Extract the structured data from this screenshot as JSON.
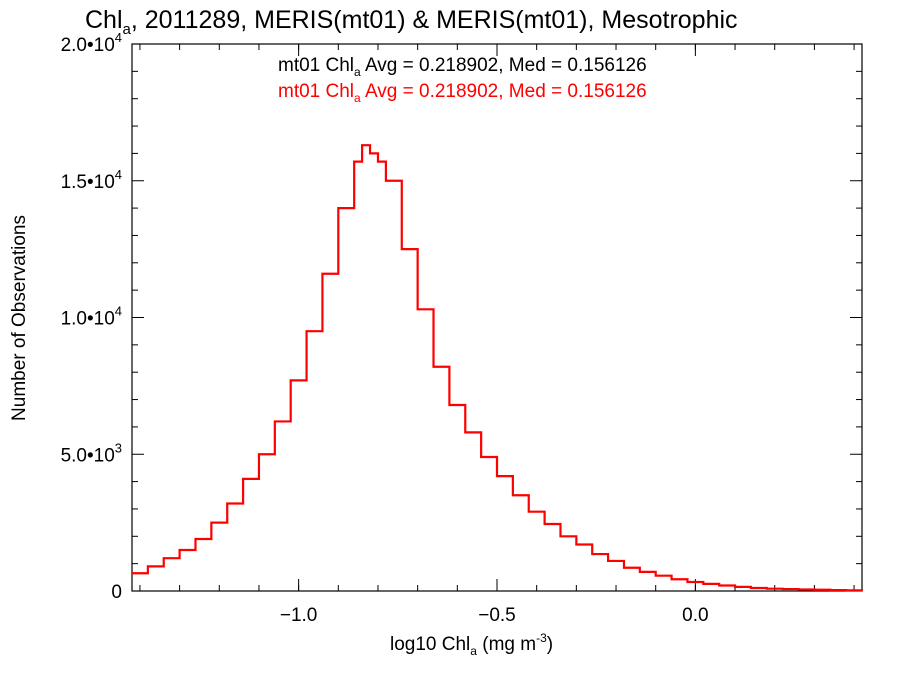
{
  "chart_data": {
    "type": "histogram",
    "title": {
      "main": "Chl",
      "sub": "a",
      "rest": ", 2011289, MERIS(mt01) & MERIS(mt01), Mesotrophic"
    },
    "xlabel": {
      "main": "log10 Chl",
      "sub": "a",
      "rest": " (mg m",
      "sup": "-3",
      "end": ")"
    },
    "ylabel": "Number of Observations",
    "xlim": [
      -1.42,
      0.42
    ],
    "ylim": [
      0,
      20000
    ],
    "x_ticks": [
      {
        "value": -1.0,
        "label": "−1.0"
      },
      {
        "value": -0.5,
        "label": "−0.5"
      },
      {
        "value": 0.0,
        "label": "0.0"
      }
    ],
    "y_ticks": [
      {
        "value": 0,
        "base": "0",
        "exp": ""
      },
      {
        "value": 5000,
        "base": "5.0•10",
        "exp": "3"
      },
      {
        "value": 10000,
        "base": "1.0•10",
        "exp": "4"
      },
      {
        "value": 15000,
        "base": "1.5•10",
        "exp": "4"
      },
      {
        "value": 20000,
        "base": "2.0•10",
        "exp": "4"
      }
    ],
    "annotations": [
      {
        "color": "#000000",
        "pre": "mt01 Chl",
        "sub": "a",
        "post": " Avg = 0.218902, Med = 0.156126"
      },
      {
        "color": "#ff0000",
        "pre": "mt01 Chl",
        "sub": "a",
        "post": " Avg = 0.218902, Med = 0.156126"
      }
    ],
    "series": [
      {
        "color": "#ff0000",
        "x": [
          -1.42,
          -1.38,
          -1.34,
          -1.3,
          -1.26,
          -1.22,
          -1.18,
          -1.14,
          -1.1,
          -1.06,
          -1.02,
          -0.98,
          -0.94,
          -0.9,
          -0.86,
          -0.84,
          -0.82,
          -0.8,
          -0.78,
          -0.74,
          -0.7,
          -0.66,
          -0.62,
          -0.58,
          -0.54,
          -0.5,
          -0.46,
          -0.42,
          -0.38,
          -0.34,
          -0.3,
          -0.26,
          -0.22,
          -0.18,
          -0.14,
          -0.1,
          -0.06,
          -0.02,
          0.02,
          0.06,
          0.1,
          0.14,
          0.18,
          0.22,
          0.26,
          0.3,
          0.34,
          0.38,
          0.42
        ],
        "y": [
          650,
          900,
          1200,
          1500,
          1900,
          2500,
          3200,
          4100,
          5000,
          6200,
          7700,
          9500,
          11600,
          14000,
          15700,
          16300,
          16000,
          15700,
          15000,
          12500,
          10300,
          8200,
          6800,
          5800,
          4900,
          4200,
          3500,
          2900,
          2450,
          2000,
          1700,
          1350,
          1100,
          850,
          700,
          560,
          430,
          330,
          260,
          200,
          150,
          110,
          85,
          70,
          55,
          45,
          35,
          25,
          15
        ]
      }
    ]
  }
}
